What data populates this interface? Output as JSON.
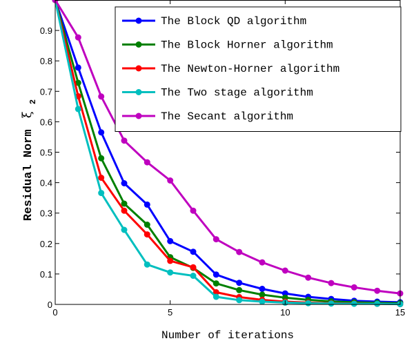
{
  "chart_data": {
    "type": "line",
    "xlabel": "Number of iterations",
    "ylabel": "Residual Norm",
    "ylabel_symbol": "ξ",
    "ylabel_subscript": "2",
    "xlim": [
      0,
      15
    ],
    "ylim": [
      0,
      1
    ],
    "xticks": [
      0,
      5,
      10,
      15
    ],
    "yticks": [
      0,
      0.1,
      0.2,
      0.3,
      0.4,
      0.5,
      0.6,
      0.7,
      0.8,
      0.9
    ],
    "grid": false,
    "legend_position": "top-right",
    "x": [
      0,
      1,
      2,
      3,
      4,
      5,
      6,
      7,
      8,
      9,
      10,
      11,
      12,
      13,
      14,
      15
    ],
    "series": [
      {
        "name": "The Block QD algorithm",
        "color": "#0000ff",
        "values": [
          1.0,
          0.778,
          0.565,
          0.398,
          0.328,
          0.208,
          0.173,
          0.098,
          0.071,
          0.051,
          0.036,
          0.025,
          0.018,
          0.012,
          0.009,
          0.007
        ]
      },
      {
        "name": "The Block Horner algorithm",
        "color": "#008000",
        "values": [
          1.0,
          0.728,
          0.48,
          0.331,
          0.262,
          0.155,
          0.12,
          0.069,
          0.047,
          0.032,
          0.022,
          0.015,
          0.01,
          0.007,
          0.005,
          0.004
        ]
      },
      {
        "name": "The Newton-Horner algorithm",
        "color": "#ff0000",
        "values": [
          1.0,
          0.684,
          0.416,
          0.308,
          0.23,
          0.143,
          0.122,
          0.04,
          0.024,
          0.015,
          0.009,
          0.006,
          0.004,
          0.003,
          0.002,
          0.001
        ]
      },
      {
        "name": "The Two stage algorithm",
        "color": "#00bfbf",
        "values": [
          1.0,
          0.642,
          0.366,
          0.245,
          0.131,
          0.105,
          0.094,
          0.025,
          0.014,
          0.009,
          0.006,
          0.004,
          0.003,
          0.002,
          0.002,
          0.001
        ]
      },
      {
        "name": "The Secant algorithm",
        "color": "#bf00bf",
        "values": [
          1.0,
          0.877,
          0.683,
          0.538,
          0.467,
          0.407,
          0.308,
          0.214,
          0.172,
          0.138,
          0.111,
          0.088,
          0.07,
          0.056,
          0.045,
          0.036
        ]
      }
    ]
  }
}
